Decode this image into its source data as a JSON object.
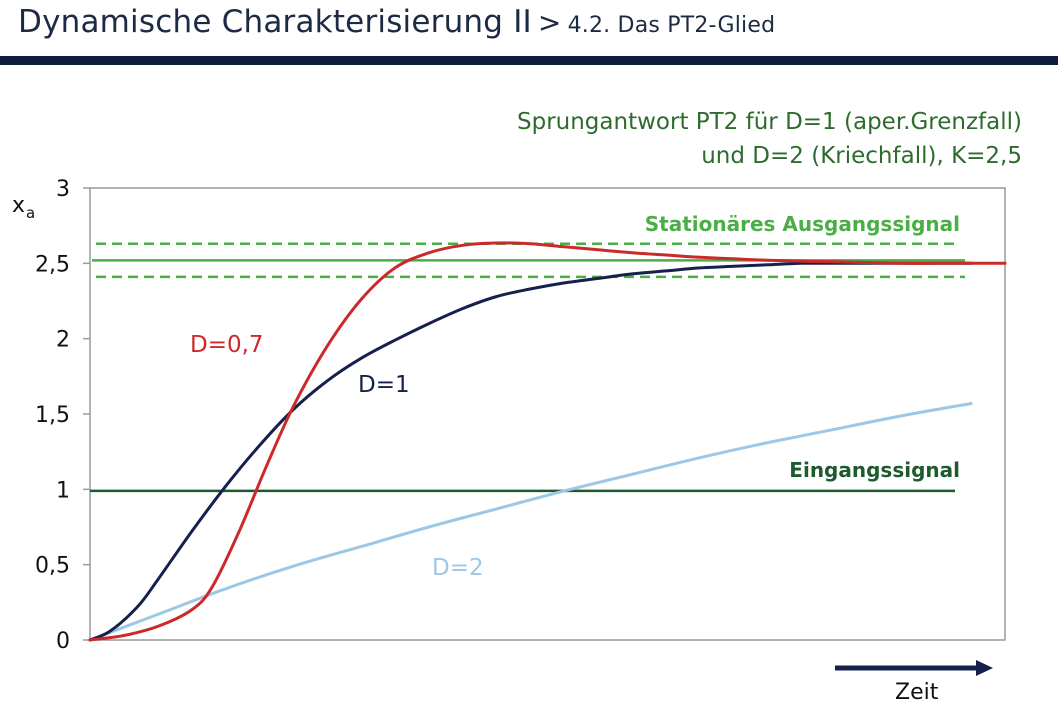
{
  "header": {
    "title": "Dynamische Charakterisierung II",
    "separator": ">",
    "subtitle": "4.2. Das PT2-Glied"
  },
  "chart_data": {
    "type": "line",
    "title_line1": "Sprungantwort PT2 für D=1 (aper.Grenzfall)",
    "title_line2": "und D=2 (Kriechfall), K=2,5",
    "ylabel": "x",
    "ylabel_sub": "a",
    "xlabel": "Zeit",
    "ylim": [
      0,
      3
    ],
    "xlim": [
      0,
      13.5
    ],
    "yticks": [
      {
        "value": 0,
        "label": "0"
      },
      {
        "value": 0.5,
        "label": "0,5"
      },
      {
        "value": 1,
        "label": "1"
      },
      {
        "value": 1.5,
        "label": "1,5"
      },
      {
        "value": 2,
        "label": "2"
      },
      {
        "value": 2.5,
        "label": "2,5"
      },
      {
        "value": 3,
        "label": "3"
      }
    ],
    "series": [
      {
        "name": "D=0,7",
        "color": "#cc2a2a",
        "x": [
          0,
          0.5,
          1,
          1.5,
          1.8,
          2.2,
          2.6,
          3,
          3.5,
          4,
          4.5,
          5,
          5.5,
          6,
          6.5,
          7,
          7.5,
          8,
          8.5,
          9,
          9.5,
          10,
          10.5,
          11,
          11.5,
          12,
          12.5,
          13,
          13.5
        ],
        "y": [
          0,
          0.03,
          0.09,
          0.2,
          0.35,
          0.72,
          1.15,
          1.55,
          1.95,
          2.26,
          2.47,
          2.57,
          2.62,
          2.635,
          2.63,
          2.61,
          2.59,
          2.57,
          2.555,
          2.54,
          2.53,
          2.52,
          2.515,
          2.51,
          2.505,
          2.5,
          2.5,
          2.5,
          2.5
        ]
      },
      {
        "name": "D=1",
        "color": "#15204d",
        "x": [
          0,
          0.3,
          0.7,
          1,
          1.5,
          2,
          2.5,
          3,
          3.5,
          4,
          4.5,
          5,
          5.5,
          6,
          6.5,
          7,
          7.5,
          8,
          8.5,
          9,
          9.5,
          10,
          10.5,
          11,
          11.5,
          12,
          12.5,
          13
        ],
        "y": [
          0,
          0.06,
          0.22,
          0.4,
          0.72,
          1.02,
          1.29,
          1.53,
          1.72,
          1.87,
          1.99,
          2.1,
          2.2,
          2.28,
          2.33,
          2.37,
          2.4,
          2.43,
          2.45,
          2.47,
          2.48,
          2.49,
          2.5,
          2.5,
          2.5,
          2.5,
          2.5,
          2.5
        ]
      },
      {
        "name": "D=2",
        "color": "#9dc7e6",
        "x": [
          0,
          1,
          2,
          3,
          4,
          5,
          6,
          7,
          8,
          9,
          10,
          11,
          12,
          13
        ],
        "y": [
          0,
          0.17,
          0.34,
          0.49,
          0.62,
          0.75,
          0.87,
          0.99,
          1.1,
          1.21,
          1.31,
          1.4,
          1.49,
          1.57
        ]
      }
    ],
    "reference_lines": {
      "input": {
        "label": "Eingangssignal",
        "y": 0.99,
        "color": "#1f5a2e"
      },
      "stationary": {
        "label": "Stationäres Ausgangssignal",
        "y": 2.52,
        "color": "#4aae46"
      },
      "tolerance_upper": 2.63,
      "tolerance_lower": 2.41
    },
    "axis_color": "#9a9a9a",
    "arrow_color": "#15204d"
  }
}
